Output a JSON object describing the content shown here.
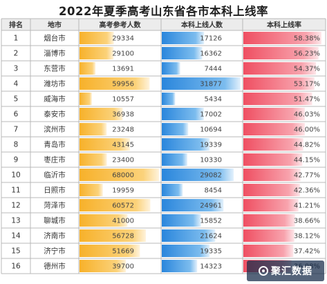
{
  "title": "2022年夏季高考山东省各市本科上线率",
  "headers": [
    "排名",
    "地市",
    "高考参考人数",
    "本科上线人数",
    "本科上线率"
  ],
  "watermark": "聚汇数据",
  "colors": {
    "grid": "#b8b8b8",
    "header_bg": "#ececec",
    "gold_bar": "#f7b733",
    "blue_bar": "#2f8de0",
    "red_bar": "#f05a6a"
  },
  "chart_data": {
    "type": "table",
    "title": "2022年夏季高考山东省各市本科上线率",
    "columns": [
      "排名",
      "地市",
      "高考参考人数",
      "本科上线人数",
      "本科上线率"
    ],
    "rows": [
      {
        "rank": "1",
        "city": "烟台市",
        "examinees": 29334,
        "admitted": 17126,
        "rate": "58.38%"
      },
      {
        "rank": "2",
        "city": "淄博市",
        "examinees": 29100,
        "admitted": 16362,
        "rate": "56.23%"
      },
      {
        "rank": "3",
        "city": "东营市",
        "examinees": 13691,
        "admitted": 7444,
        "rate": "54.37%"
      },
      {
        "rank": "4",
        "city": "潍坊市",
        "examinees": 59956,
        "admitted": 31877,
        "rate": "53.17%"
      },
      {
        "rank": "5",
        "city": "威海市",
        "examinees": 10557,
        "admitted": 5434,
        "rate": "51.47%"
      },
      {
        "rank": "6",
        "city": "泰安市",
        "examinees": 36938,
        "admitted": 17002,
        "rate": "46.03%"
      },
      {
        "rank": "7",
        "city": "滨州市",
        "examinees": 23248,
        "admitted": 10694,
        "rate": "46.00%"
      },
      {
        "rank": "8",
        "city": "青岛市",
        "examinees": 43145,
        "admitted": 19339,
        "rate": "44.82%"
      },
      {
        "rank": "9",
        "city": "枣庄市",
        "examinees": 23400,
        "admitted": 10330,
        "rate": "44.15%"
      },
      {
        "rank": "10",
        "city": "临沂市",
        "examinees": 68000,
        "admitted": 29082,
        "rate": "42.77%"
      },
      {
        "rank": "11",
        "city": "日照市",
        "examinees": 19959,
        "admitted": 8454,
        "rate": "42.36%"
      },
      {
        "rank": "12",
        "city": "菏泽市",
        "examinees": 60572,
        "admitted": 24961,
        "rate": "41.21%"
      },
      {
        "rank": "13",
        "city": "聊城市",
        "examinees": 41000,
        "admitted": 15852,
        "rate": "38.66%"
      },
      {
        "rank": "14",
        "city": "济南市",
        "examinees": 56728,
        "admitted": 21624,
        "rate": "38.12%"
      },
      {
        "rank": "15",
        "city": "济宁市",
        "examinees": 51669,
        "admitted": 19335,
        "rate": "37.42%"
      },
      {
        "rank": "16",
        "city": "德州市",
        "examinees": 39700,
        "admitted": 14323,
        "rate": "36.08%"
      }
    ]
  }
}
